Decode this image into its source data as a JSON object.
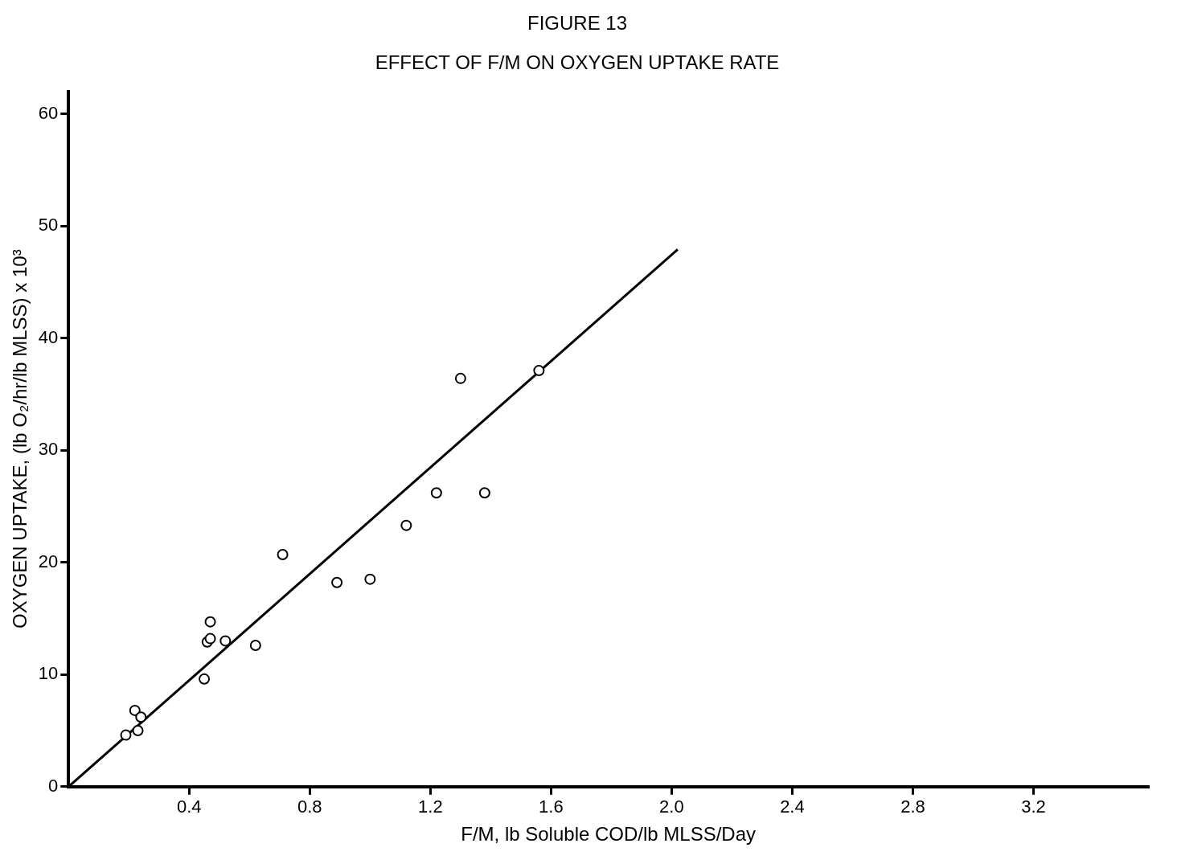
{
  "chart_data": {
    "type": "scatter",
    "title": "FIGURE 13",
    "subtitle": "EFFECT OF F/M ON OXYGEN UPTAKE RATE",
    "xlabel": "F/M, lb Soluble COD/lb MLSS/Day",
    "ylabel": "OXYGEN UPTAKE, (lb O₂/hr/lb MLSS) x 10³",
    "series": [
      {
        "color": "#000000",
        "x": [
          0.19,
          0.22,
          0.23,
          0.24,
          0.45,
          0.46,
          0.47,
          0.47,
          0.52,
          0.62,
          0.71,
          0.89,
          1.0,
          1.12,
          1.22,
          1.3,
          1.38,
          1.56
        ],
        "values": [
          4.6,
          6.8,
          5.0,
          6.2,
          9.6,
          12.9,
          13.2,
          14.7,
          13.0,
          12.6,
          20.7,
          18.2,
          18.5,
          23.3,
          26.2,
          36.4,
          26.2,
          37.1
        ]
      },
      {
        "type": "line",
        "color": "#000000",
        "marker": "none",
        "x": [
          0,
          2.02
        ],
        "values": [
          0,
          47.9
        ]
      }
    ],
    "xlim": [
      0,
      3.58
    ],
    "xticks": [
      0.4,
      0.8,
      1.2,
      1.6,
      {
        "value": 2,
        "label": "2.0"
      },
      2.4,
      2.8,
      3.2
    ],
    "ylim": [
      0,
      62
    ],
    "yticks": [
      0,
      10,
      20,
      30,
      40,
      50,
      60
    ],
    "marker": "circle",
    "legend": false
  }
}
